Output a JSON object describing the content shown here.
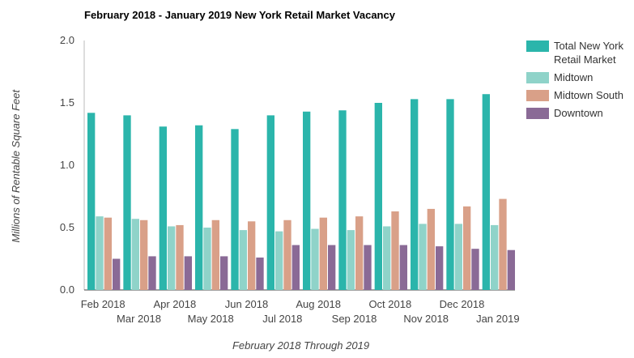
{
  "chart_data": {
    "type": "bar",
    "title": "February 2018 - January 2019 New York Retail Market Vacancy",
    "xlabel": "February 2018 Through 2019",
    "ylabel": "Millions of Rentable Square Feet",
    "ylim": [
      0,
      2.0
    ],
    "yticks": [
      "0.0",
      "0.5",
      "1.0",
      "1.5",
      "2.0"
    ],
    "grid": false,
    "legend_position": "right",
    "categories": [
      "Feb 2018",
      "Mar 2018",
      "Apr 2018",
      "May 2018",
      "Jun 2018",
      "Jul 2018",
      "Aug 2018",
      "Sep 2018",
      "Oct 2018",
      "Nov 2018",
      "Dec 2018",
      "Jan 2019"
    ],
    "series": [
      {
        "name": "Total New York Retail Market",
        "name_lines": [
          "Total New York",
          "Retail Market"
        ],
        "color": "#2bb5ab",
        "values": [
          1.42,
          1.4,
          1.31,
          1.32,
          1.29,
          1.4,
          1.43,
          1.44,
          1.5,
          1.53,
          1.53,
          1.57
        ]
      },
      {
        "name": "Midtown",
        "name_lines": [
          "Midtown"
        ],
        "color": "#8fd3c9",
        "values": [
          0.59,
          0.57,
          0.51,
          0.5,
          0.48,
          0.47,
          0.49,
          0.48,
          0.51,
          0.53,
          0.53,
          0.52
        ]
      },
      {
        "name": "Midtown South",
        "name_lines": [
          "Midtown South"
        ],
        "color": "#d9a088",
        "values": [
          0.58,
          0.56,
          0.52,
          0.56,
          0.55,
          0.56,
          0.58,
          0.59,
          0.63,
          0.65,
          0.67,
          0.73
        ]
      },
      {
        "name": "Downtown",
        "name_lines": [
          "Downtown"
        ],
        "color": "#8a6a96",
        "values": [
          0.25,
          0.27,
          0.27,
          0.27,
          0.26,
          0.36,
          0.36,
          0.36,
          0.36,
          0.35,
          0.33,
          0.32
        ]
      }
    ]
  }
}
